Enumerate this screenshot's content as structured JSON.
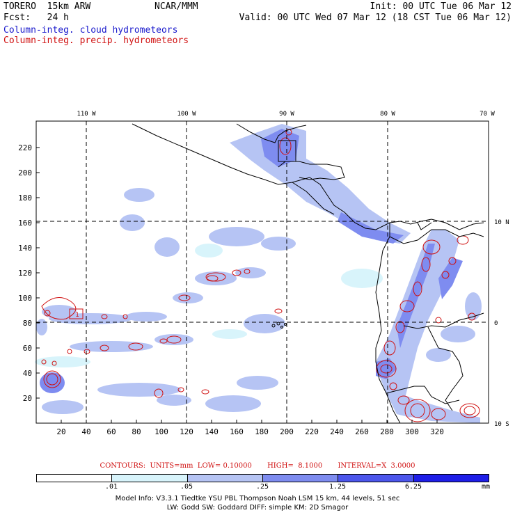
{
  "header": {
    "title_left": "TORERO  15km ARW",
    "fcst": "Fcst:   24 h",
    "center": "NCAR/MMM",
    "init": "Init: 00 UTC Tue 06 Mar 12",
    "valid": "Valid: 00 UTC Wed 07 Mar 12 (18 CST Tue 06 Mar 12)",
    "field1": "Column-integ. cloud hydrometeors",
    "field2": "Column-integ. precip. hydrometeors"
  },
  "map": {
    "lon_labels": [
      "110 W",
      "100 W",
      "90 W",
      "80 W",
      "70 W"
    ],
    "lat_labels": [
      "10 N",
      "0",
      "10 S"
    ],
    "x_ticks": [
      "20",
      "40",
      "60",
      "80",
      "100",
      "120",
      "140",
      "160",
      "180",
      "200",
      "220",
      "240",
      "260",
      "280",
      "300",
      "320"
    ],
    "y_ticks": [
      "20",
      "40",
      "60",
      "80",
      "100",
      "120",
      "140",
      "160",
      "180",
      "200",
      "220"
    ],
    "box_label": "1"
  },
  "contours_text": "CONTOURS:  UNITS=mm  LOW= 0.10000       HIGH=  8.1000       INTERVAL=X  3.0000",
  "legend": {
    "labels": [
      ".01",
      ".05",
      ".25",
      "1.25",
      "6.25"
    ],
    "unit": "mm",
    "colors": [
      "#ffffff",
      "#d8f4fb",
      "#b6c4f4",
      "#7e8cf0",
      "#4c56ec",
      "#1e1ee8"
    ]
  },
  "model_info": {
    "line1": "Model Info: V3.3.1    Tiedtke YSU PBL   Thompson    Noah LSM  15 km,   44 levels,   51 sec",
    "line2": "LW: Godd SW: Goddard DIFF: simple KM: 2D Smagor"
  }
}
